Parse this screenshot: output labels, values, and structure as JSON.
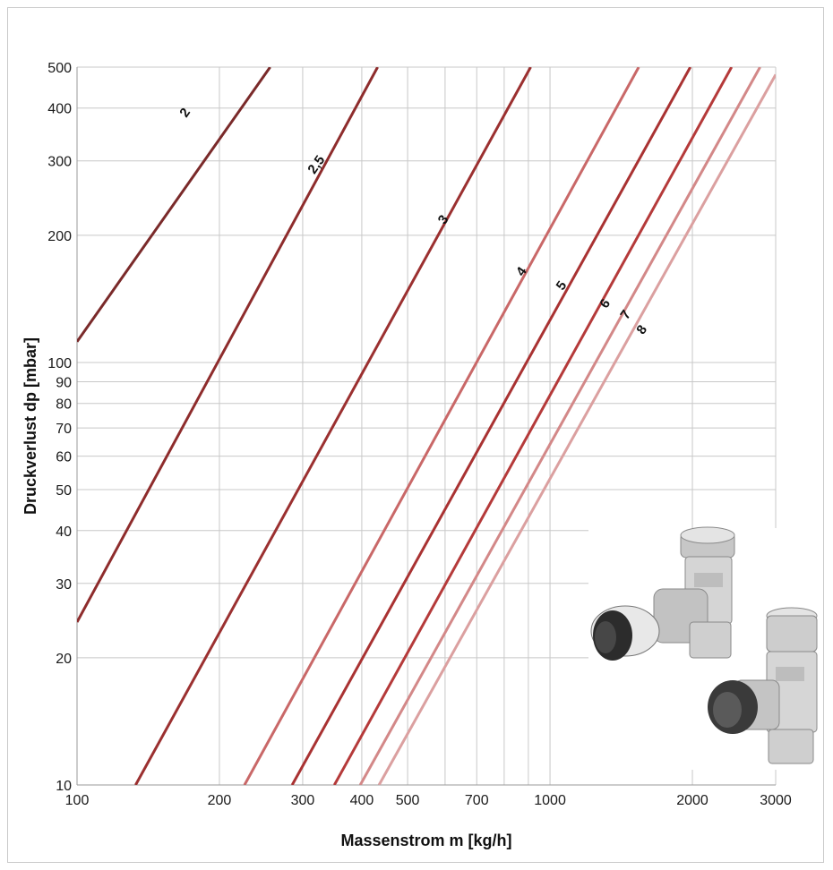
{
  "chart_data": {
    "type": "line",
    "title": "",
    "xlabel": "Massenstrom m [kg/h]",
    "ylabel": "Druckverlust dp [mbar]",
    "x_scale": "log",
    "y_scale": "log",
    "xlim": [
      100,
      3000
    ],
    "ylim": [
      10,
      500
    ],
    "x_ticks": [
      100,
      200,
      300,
      400,
      500,
      700,
      1000,
      2000,
      3000
    ],
    "x_tick_labels": [
      "100",
      "200",
      "300",
      "400",
      "500",
      "700",
      "1000",
      "2000",
      "3000"
    ],
    "x_minor_grid": [
      600,
      800,
      900
    ],
    "y_ticks": [
      10,
      20,
      30,
      40,
      50,
      60,
      70,
      80,
      90,
      100,
      200,
      300,
      400,
      500
    ],
    "y_tick_labels": [
      "10",
      "20",
      "30",
      "40",
      "50",
      "60",
      "70",
      "80",
      "90",
      "100",
      "200",
      "300",
      "400",
      "500"
    ],
    "grid": true,
    "series": [
      {
        "name": "2",
        "color": "#7a2a2a",
        "points": [
          [
            100,
            112
          ],
          [
            256,
            500
          ]
        ]
      },
      {
        "name": "2,5",
        "color": "#8e2c2c",
        "points": [
          [
            100,
            24.3
          ],
          [
            432,
            500
          ]
        ]
      },
      {
        "name": "3",
        "color": "#9b3030",
        "points": [
          [
            133,
            10
          ],
          [
            910,
            500
          ]
        ]
      },
      {
        "name": "4",
        "color": "#c96868",
        "points": [
          [
            226,
            10
          ],
          [
            1540,
            500
          ]
        ]
      },
      {
        "name": "5",
        "color": "#a93232",
        "points": [
          [
            285,
            10
          ],
          [
            1980,
            500
          ]
        ]
      },
      {
        "name": "6",
        "color": "#b53a3a",
        "points": [
          [
            350,
            10
          ],
          [
            2420,
            500
          ]
        ]
      },
      {
        "name": "7",
        "color": "#d38888",
        "points": [
          [
            397,
            10
          ],
          [
            2780,
            500
          ]
        ]
      },
      {
        "name": "8",
        "color": "#dba0a0",
        "points": [
          [
            435,
            10
          ],
          [
            3000,
            480
          ]
        ]
      }
    ],
    "curve_labels": [
      {
        "text": "2",
        "x": 172,
        "y": 385
      },
      {
        "text": "2,5",
        "x": 326,
        "y": 290
      },
      {
        "text": "3",
        "x": 605,
        "y": 215
      },
      {
        "text": "4",
        "x": 885,
        "y": 162
      },
      {
        "text": "5",
        "x": 1075,
        "y": 150
      },
      {
        "text": "6",
        "x": 1330,
        "y": 136
      },
      {
        "text": "7",
        "x": 1470,
        "y": 128
      },
      {
        "text": "8",
        "x": 1590,
        "y": 118
      }
    ]
  },
  "image": {
    "icon": "valve-product-photo-icon"
  }
}
